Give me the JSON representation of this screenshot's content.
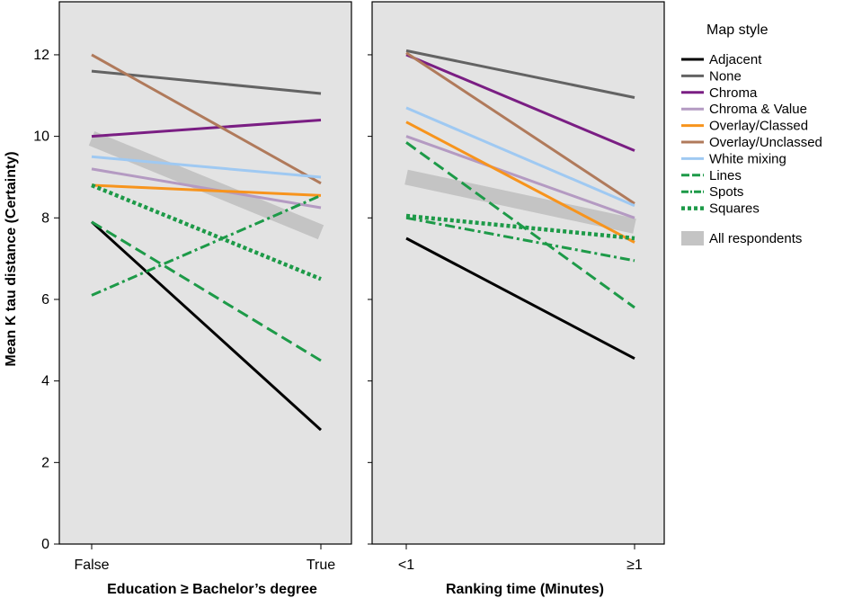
{
  "chart_data": {
    "type": "line",
    "ylabel": "Mean K tau distance (Certainty)",
    "ylim": [
      0,
      13.3
    ],
    "yticks": [
      0,
      2,
      4,
      6,
      8,
      10,
      12
    ],
    "grid": false,
    "legend": {
      "title": "Map style",
      "placement": "right",
      "entries": [
        {
          "name": "Adjacent",
          "color": "#000000",
          "dash": "solid"
        },
        {
          "name": "None",
          "color": "#636363",
          "dash": "solid"
        },
        {
          "name": "Chroma",
          "color": "#7a1e83",
          "dash": "solid"
        },
        {
          "name": "Chroma & Value",
          "color": "#b49ac2",
          "dash": "solid"
        },
        {
          "name": "Overlay/Classed",
          "color": "#f7941d",
          "dash": "solid"
        },
        {
          "name": "Overlay/Unclassed",
          "color": "#b07a5b",
          "dash": "solid"
        },
        {
          "name": "White mixing",
          "color": "#9fc9f2",
          "dash": "solid"
        },
        {
          "name": "Lines",
          "color": "#1d9a48",
          "dash": "dashed"
        },
        {
          "name": "Spots",
          "color": "#1d9a48",
          "dash": "dashdot"
        },
        {
          "name": "Squares",
          "color": "#1d9a48",
          "dash": "dotted"
        },
        {
          "name": "All respondents",
          "color": "#c4c4c4",
          "dash": "band"
        }
      ]
    },
    "panels": [
      {
        "xlabel": "Education ≥ Bachelor’s degree",
        "categories": [
          "False",
          "True"
        ],
        "series": [
          {
            "name": "Adjacent",
            "values": [
              7.9,
              2.8
            ]
          },
          {
            "name": "None",
            "values": [
              11.6,
              11.05
            ]
          },
          {
            "name": "Chroma",
            "values": [
              10.0,
              10.4
            ]
          },
          {
            "name": "Chroma & Value",
            "values": [
              9.2,
              8.25
            ]
          },
          {
            "name": "Overlay/Classed",
            "values": [
              8.8,
              8.55
            ]
          },
          {
            "name": "Overlay/Unclassed",
            "values": [
              12.0,
              8.85
            ]
          },
          {
            "name": "White mixing",
            "values": [
              9.5,
              9.0
            ]
          },
          {
            "name": "Lines",
            "values": [
              7.9,
              4.5
            ]
          },
          {
            "name": "Spots",
            "values": [
              6.1,
              8.55
            ]
          },
          {
            "name": "Squares",
            "values": [
              8.8,
              6.5
            ]
          },
          {
            "name": "All respondents",
            "values": [
              9.95,
              7.65
            ]
          }
        ]
      },
      {
        "xlabel": "Ranking time (Minutes)",
        "categories": [
          "<1",
          "≥1"
        ],
        "series": [
          {
            "name": "Adjacent",
            "values": [
              7.5,
              4.55
            ]
          },
          {
            "name": "None",
            "values": [
              12.1,
              10.95
            ]
          },
          {
            "name": "Chroma",
            "values": [
              12.0,
              9.65
            ]
          },
          {
            "name": "Chroma & Value",
            "values": [
              10.0,
              8.0
            ]
          },
          {
            "name": "Overlay/Classed",
            "values": [
              10.35,
              7.4
            ]
          },
          {
            "name": "Overlay/Unclassed",
            "values": [
              12.05,
              8.35
            ]
          },
          {
            "name": "White mixing",
            "values": [
              10.7,
              8.3
            ]
          },
          {
            "name": "Lines",
            "values": [
              9.85,
              5.8
            ]
          },
          {
            "name": "Spots",
            "values": [
              8.0,
              6.95
            ]
          },
          {
            "name": "Squares",
            "values": [
              8.05,
              7.5
            ]
          },
          {
            "name": "All respondents",
            "values": [
              9.0,
              7.8
            ]
          }
        ]
      }
    ]
  }
}
